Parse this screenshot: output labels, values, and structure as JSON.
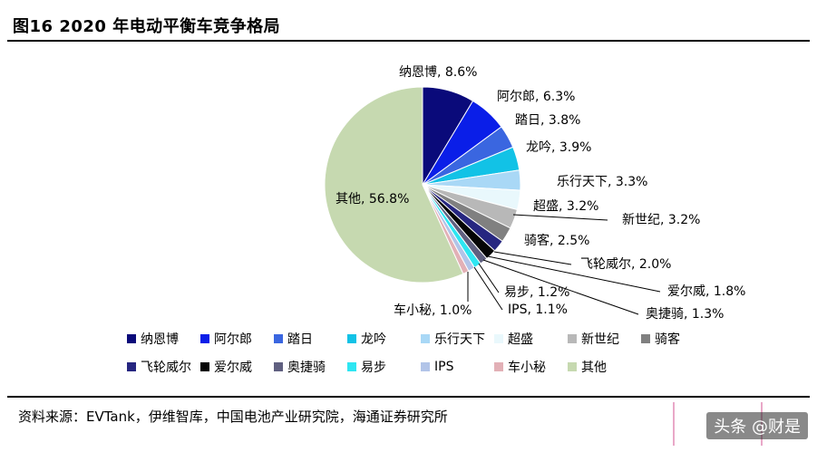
{
  "header": {
    "title": "图16 2020 年电动平衡车竞争格局"
  },
  "chart_data": {
    "type": "pie",
    "slices": [
      {
        "name": "纳恩博",
        "value": 8.6,
        "label": "纳恩博, 8.6%",
        "color": "#0a0a7a"
      },
      {
        "name": "阿尔郎",
        "value": 6.3,
        "label": "阿尔郎, 6.3%",
        "color": "#0a1ee8"
      },
      {
        "name": "踏日",
        "value": 3.8,
        "label": "踏日, 3.8%",
        "color": "#3a66e0"
      },
      {
        "name": "龙吟",
        "value": 3.9,
        "label": "龙吟, 3.9%",
        "color": "#12c2e6"
      },
      {
        "name": "乐行天下",
        "value": 3.3,
        "label": "乐行天下, 3.3%",
        "color": "#a9d8f6"
      },
      {
        "name": "超盛",
        "value": 3.2,
        "label": "超盛, 3.2%",
        "color": "#e9f8fc"
      },
      {
        "name": "新世纪",
        "value": 3.2,
        "label": "新世纪, 3.2%",
        "color": "#b8b8b8"
      },
      {
        "name": "骑客",
        "value": 2.5,
        "label": "骑客, 2.5%",
        "color": "#808080"
      },
      {
        "name": "飞轮威尔",
        "value": 2.0,
        "label": "飞轮威尔, 2.0%",
        "color": "#262680"
      },
      {
        "name": "爱尔威",
        "value": 1.8,
        "label": "爱尔威, 1.8%",
        "color": "#050505"
      },
      {
        "name": "奥捷骑",
        "value": 1.3,
        "label": "奥捷骑, 1.3%",
        "color": "#606080"
      },
      {
        "name": "易步",
        "value": 1.2,
        "label": "易步, 1.2%",
        "color": "#2ee6f2"
      },
      {
        "name": "IPS",
        "value": 1.1,
        "label": "IPS, 1.1%",
        "color": "#b2c4e8"
      },
      {
        "name": "车小秘",
        "value": 1.0,
        "label": "车小秘, 1.0%",
        "color": "#e2b0b6"
      },
      {
        "name": "其他",
        "value": 56.8,
        "label": "其他, 56.8%",
        "color": "#c6d9b0"
      }
    ],
    "legend_placement": "bottom"
  },
  "footer": {
    "source": "资料来源：EVTank，伊维智库，中国电池产业研究院，海通证券研究所",
    "watermark": "头条 @财是"
  }
}
